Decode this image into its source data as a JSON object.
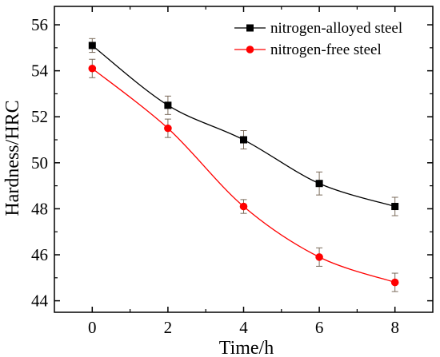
{
  "chart_data": {
    "type": "line",
    "xlabel": "Time/h",
    "ylabel": "Hardness/HRC",
    "x": [
      0,
      2,
      4,
      6,
      8
    ],
    "xlim": [
      -1,
      9
    ],
    "ylim": [
      43.5,
      56.8
    ],
    "xticks": [
      0,
      2,
      4,
      6,
      8
    ],
    "yticks": [
      44,
      46,
      48,
      50,
      52,
      54,
      56
    ],
    "x_tick_labels": [
      "0",
      "2",
      "4",
      "6",
      "8"
    ],
    "y_tick_labels": [
      "44",
      "46",
      "48",
      "50",
      "52",
      "54",
      "56"
    ],
    "grid": false,
    "legend_position": "top-right",
    "series": [
      {
        "name": "nitrogen-alloyed steel",
        "values": [
          55.1,
          52.5,
          51.0,
          49.1,
          48.1
        ],
        "errors": [
          0.3,
          0.4,
          0.4,
          0.5,
          0.4
        ],
        "color": "#000000",
        "marker": "square"
      },
      {
        "name": "nitrogen-free steel",
        "values": [
          54.1,
          51.5,
          48.1,
          45.9,
          44.8
        ],
        "errors": [
          0.4,
          0.4,
          0.3,
          0.4,
          0.4
        ],
        "color": "#ff0000",
        "marker": "circle"
      }
    ]
  }
}
